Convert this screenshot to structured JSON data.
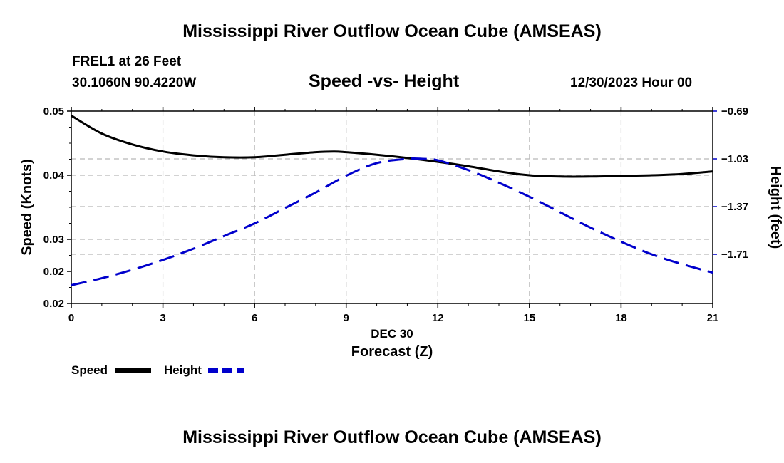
{
  "header": {
    "title": "Mississippi River Outflow Ocean Cube (AMSEAS)",
    "station": "FREL1 at 26 Feet",
    "coords": "30.1060N  90.4220W",
    "subtitle": "Speed -vs- Height",
    "datetime": "12/30/2023 Hour 00"
  },
  "footer": {
    "title": "Mississippi River Outflow Ocean Cube (AMSEAS)"
  },
  "chart_data": {
    "type": "line",
    "title": "Speed -vs- Height",
    "xlabel_date": "DEC 30",
    "xlabel": "Forecast (Z)",
    "ylabel": "Speed (Knots)",
    "y2label": "Height (feet)",
    "xlim": [
      0,
      21
    ],
    "ylim": [
      0.02,
      0.05
    ],
    "y2lim": [
      -2.06,
      -0.69
    ],
    "x_ticks": [
      0,
      3,
      6,
      9,
      12,
      15,
      18,
      21
    ],
    "x_tick_labels": [
      "0",
      "3",
      "6",
      "9",
      "12",
      "15",
      "18",
      "21"
    ],
    "y_ticks": [
      0.02,
      0.03,
      0.04,
      0.05
    ],
    "y_tick_labels": [
      "0.02",
      "0.02",
      "0.03",
      "0.04",
      "0.05"
    ],
    "y_tick_label_values": [
      0.02,
      0.025,
      0.03,
      0.04,
      0.05
    ],
    "y2_ticks": [
      -0.69,
      -1.03,
      -1.37,
      -1.71
    ],
    "y2_tick_labels": [
      "−0.69",
      "−1.03",
      "−1.37",
      "−1.71"
    ],
    "grid": true,
    "series": [
      {
        "name": "Speed",
        "axis": "left",
        "color": "#000000",
        "style": "solid",
        "x": [
          0,
          1,
          2,
          3,
          4,
          5,
          6,
          7,
          8,
          8.6,
          9,
          10,
          11,
          12,
          13,
          14,
          15,
          16,
          17,
          18,
          19,
          20,
          21
        ],
        "values": [
          0.0493,
          0.0465,
          0.0448,
          0.0437,
          0.0431,
          0.0428,
          0.0428,
          0.0432,
          0.0436,
          0.0437,
          0.0436,
          0.0432,
          0.0427,
          0.0421,
          0.0414,
          0.0406,
          0.04,
          0.0398,
          0.0398,
          0.0399,
          0.04,
          0.0402,
          0.0406
        ]
      },
      {
        "name": "Height",
        "axis": "right",
        "color": "#0000cc",
        "style": "dashed",
        "x": [
          0,
          1,
          2,
          3,
          4,
          5,
          6,
          7,
          8,
          9,
          10,
          11,
          11.5,
          12,
          13,
          14,
          15,
          16,
          17,
          18,
          19,
          20,
          21
        ],
        "values": [
          -1.93,
          -1.88,
          -1.82,
          -1.75,
          -1.67,
          -1.58,
          -1.49,
          -1.38,
          -1.27,
          -1.15,
          -1.06,
          -1.03,
          -1.03,
          -1.04,
          -1.11,
          -1.2,
          -1.3,
          -1.41,
          -1.52,
          -1.62,
          -1.71,
          -1.78,
          -1.84
        ]
      }
    ],
    "legend": [
      "Speed",
      "Height"
    ],
    "legend_position": "bottom-left"
  }
}
